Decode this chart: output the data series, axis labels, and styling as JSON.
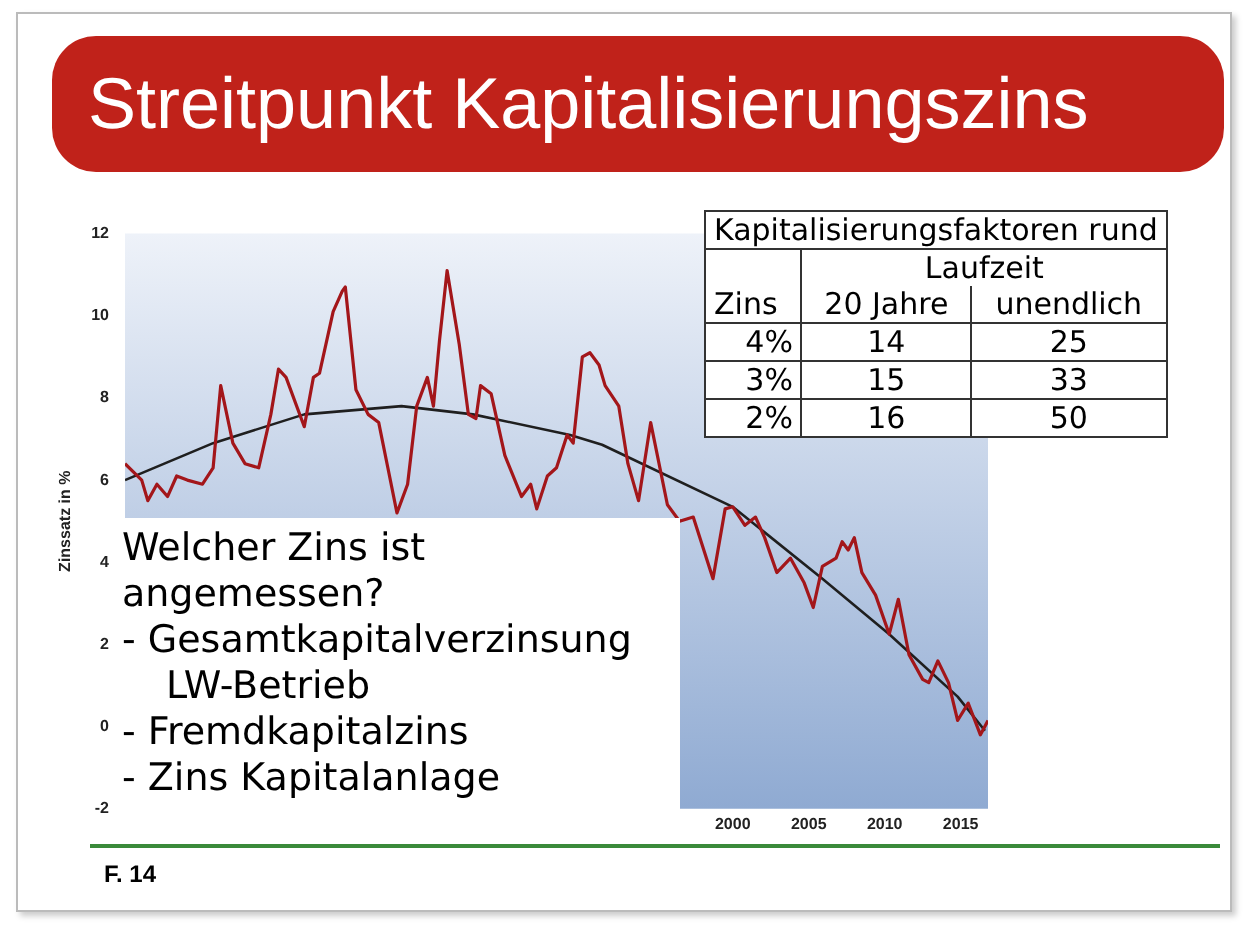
{
  "chart_data": {
    "type": "line",
    "title": "Streitpunkt Kapitalisierungszins",
    "ylabel": "Zinssatz in %",
    "xlim": [
      1960,
      2016.8
    ],
    "xticks": [
      2000,
      2005,
      2010,
      2015
    ],
    "ylim": [
      -2,
      12
    ],
    "yticks": [
      -2,
      0,
      2,
      4,
      6,
      8,
      10,
      12
    ],
    "grid": false,
    "legend": false,
    "marker": "none",
    "line_style": "solid",
    "series": [
      {
        "color": "#a3161a",
        "x": [
          1960.0,
          1961.1,
          1961.5,
          1962.1,
          1962.8,
          1963.4,
          1964.1,
          1965.1,
          1965.8,
          1966.3,
          1967.1,
          1967.9,
          1968.8,
          1969.6,
          1970.1,
          1970.6,
          1971.8,
          1972.4,
          1972.8,
          1973.7,
          1974.3,
          1974.5,
          1975.2,
          1976.0,
          1976.7,
          1977.3,
          1977.9,
          1978.6,
          1979.2,
          1979.9,
          1980.3,
          1980.7,
          1981.2,
          1982.0,
          1982.6,
          1983.1,
          1983.4,
          1984.1,
          1985.0,
          1986.1,
          1986.7,
          1987.1,
          1987.8,
          1988.4,
          1989.1,
          1989.5,
          1990.1,
          1990.6,
          1991.2,
          1991.6,
          1992.5,
          1993.1,
          1993.8,
          1994.6,
          1995.7,
          1996.5,
          1997.4,
          1998.7,
          1999.5,
          2000.0,
          2000.8,
          2001.5,
          2002.1,
          2002.9,
          2003.8,
          2004.7,
          2005.3,
          2005.9,
          2006.8,
          2007.2,
          2007.6,
          2008.0,
          2008.5,
          2009.4,
          2010.3,
          2010.9,
          2011.6,
          2012.5,
          2012.9,
          2013.5,
          2014.2,
          2014.8,
          2015.5,
          2016.3,
          2016.8
        ],
        "values": [
          6.4,
          6.0,
          5.5,
          5.9,
          5.6,
          6.1,
          6.0,
          5.9,
          6.3,
          8.3,
          6.9,
          6.4,
          6.3,
          7.6,
          8.7,
          8.5,
          7.3,
          8.5,
          8.6,
          10.1,
          10.6,
          10.7,
          8.2,
          7.6,
          7.4,
          6.3,
          5.2,
          5.9,
          7.8,
          8.5,
          7.8,
          9.4,
          11.1,
          9.3,
          7.6,
          7.5,
          8.3,
          8.1,
          6.6,
          5.6,
          5.9,
          5.3,
          6.1,
          6.3,
          7.1,
          6.9,
          9.0,
          9.1,
          8.8,
          8.3,
          7.8,
          6.4,
          5.5,
          7.4,
          5.4,
          5.0,
          5.1,
          3.6,
          5.3,
          5.35,
          4.9,
          5.1,
          4.6,
          3.75,
          4.1,
          3.5,
          2.9,
          3.9,
          4.1,
          4.5,
          4.3,
          4.6,
          3.75,
          3.2,
          2.25,
          3.1,
          1.75,
          1.15,
          1.07,
          1.6,
          1.07,
          0.15,
          0.57,
          -0.2,
          0.15
        ]
      },
      {
        "color": "#1f1f1f",
        "x": [
          1960,
          1965.8,
          1971.8,
          1978.2,
          1982.9,
          1989.3,
          1991.4,
          2000,
          2005.9,
          2010.3,
          2014.8,
          2016.6
        ],
        "values": [
          6.0,
          6.9,
          7.6,
          7.8,
          7.6,
          7.1,
          6.86,
          5.35,
          3.6,
          2.25,
          0.73,
          -0.1
        ]
      }
    ],
    "annotations": [
      "Kapitalisierungsfaktoren rund",
      "Laufzeit",
      "Zins",
      "20 Jahre",
      "unendlich",
      "4%",
      "14",
      "25",
      "3%",
      "15",
      "33",
      "2%",
      "16",
      "50",
      "Welcher Zins ist angemessen?",
      "- Gesamtkapitalverzinsung LW-Betrieb",
      "- Fremdkapitalzins",
      "- Zins Kapitalanlage",
      "F. 14"
    ]
  }
}
